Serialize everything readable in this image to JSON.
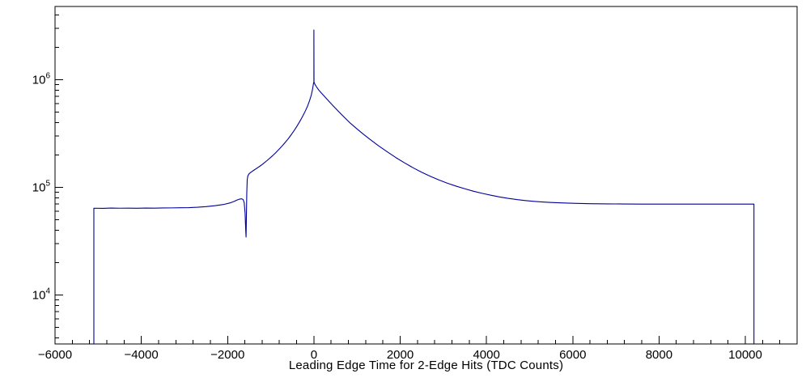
{
  "chart_data": {
    "type": "line",
    "title": "",
    "xlabel": "Leading Edge Time for 2-Edge Hits (TDC Counts)",
    "ylabel": "",
    "grid": false,
    "legend": "none",
    "y_scale": "log",
    "xlim": [
      -6000,
      11200
    ],
    "ylim": [
      3500,
      4800000
    ],
    "line_color": "#000099",
    "axis_color": "#000000",
    "x_minor_step": 400,
    "x_ticks": [
      {
        "value": -6000,
        "label": "−6000"
      },
      {
        "value": -4000,
        "label": "−4000"
      },
      {
        "value": -2000,
        "label": "−2000"
      },
      {
        "value": 0,
        "label": "0"
      },
      {
        "value": 2000,
        "label": "2000"
      },
      {
        "value": 4000,
        "label": "4000"
      },
      {
        "value": 6000,
        "label": "6000"
      },
      {
        "value": 8000,
        "label": "8000"
      },
      {
        "value": 10000,
        "label": "10000"
      }
    ],
    "y_decades": [
      {
        "value": 10000,
        "base": "10",
        "exp": "4"
      },
      {
        "value": 100000,
        "base": "10",
        "exp": "5"
      },
      {
        "value": 1000000,
        "base": "10",
        "exp": "6"
      }
    ],
    "series": [
      {
        "name": "leading-edge-time-2-edge-hits",
        "points": [
          [
            -5100,
            3500
          ],
          [
            -5100,
            64000
          ],
          [
            -4900,
            63800
          ],
          [
            -4700,
            64200
          ],
          [
            -4500,
            64000
          ],
          [
            -4300,
            64100
          ],
          [
            -4100,
            63900
          ],
          [
            -3900,
            64200
          ],
          [
            -3700,
            64100
          ],
          [
            -3500,
            64300
          ],
          [
            -3300,
            64400
          ],
          [
            -3100,
            64600
          ],
          [
            -2900,
            64800
          ],
          [
            -2700,
            65300
          ],
          [
            -2500,
            66200
          ],
          [
            -2300,
            67500
          ],
          [
            -2100,
            69200
          ],
          [
            -1950,
            71500
          ],
          [
            -1850,
            74000
          ],
          [
            -1780,
            76200
          ],
          [
            -1720,
            77800
          ],
          [
            -1670,
            78200
          ],
          [
            -1640,
            77000
          ],
          [
            -1615,
            72000
          ],
          [
            -1595,
            58000
          ],
          [
            -1580,
            40000
          ],
          [
            -1572,
            34500
          ],
          [
            -1565,
            52000
          ],
          [
            -1555,
            90000
          ],
          [
            -1545,
            118000
          ],
          [
            -1530,
            128000
          ],
          [
            -1500,
            134000
          ],
          [
            -1450,
            139000
          ],
          [
            -1400,
            143500
          ],
          [
            -1350,
            148000
          ],
          [
            -1300,
            152500
          ],
          [
            -1250,
            157500
          ],
          [
            -1200,
            163000
          ],
          [
            -1150,
            169000
          ],
          [
            -1100,
            175500
          ],
          [
            -1050,
            182500
          ],
          [
            -1000,
            190000
          ],
          [
            -950,
            198000
          ],
          [
            -900,
            207000
          ],
          [
            -850,
            217000
          ],
          [
            -800,
            227500
          ],
          [
            -750,
            239000
          ],
          [
            -700,
            252000
          ],
          [
            -650,
            266000
          ],
          [
            -600,
            281000
          ],
          [
            -550,
            299000
          ],
          [
            -500,
            319000
          ],
          [
            -450,
            341000
          ],
          [
            -400,
            366000
          ],
          [
            -350,
            395000
          ],
          [
            -300,
            428000
          ],
          [
            -250,
            466000
          ],
          [
            -200,
            511000
          ],
          [
            -150,
            565000
          ],
          [
            -100,
            640000
          ],
          [
            -60,
            720000
          ],
          [
            -30,
            820000
          ],
          [
            -10,
            920000
          ],
          [
            0,
            955000
          ],
          [
            0,
            2900000
          ],
          [
            3,
            950000
          ],
          [
            25,
            905000
          ],
          [
            60,
            860000
          ],
          [
            110,
            805000
          ],
          [
            170,
            755000
          ],
          [
            250,
            697000
          ],
          [
            350,
            630000
          ],
          [
            450,
            570000
          ],
          [
            570,
            508000
          ],
          [
            700,
            450000
          ],
          [
            850,
            393000
          ],
          [
            1000,
            349000
          ],
          [
            1150,
            311000
          ],
          [
            1300,
            279000
          ],
          [
            1500,
            243000
          ],
          [
            1700,
            214000
          ],
          [
            1900,
            189000
          ],
          [
            2100,
            169000
          ],
          [
            2300,
            152000
          ],
          [
            2500,
            138000
          ],
          [
            2700,
            126500
          ],
          [
            2900,
            117000
          ],
          [
            3100,
            109000
          ],
          [
            3300,
            102500
          ],
          [
            3500,
            97000
          ],
          [
            3700,
            92000
          ],
          [
            3900,
            88000
          ],
          [
            4100,
            84500
          ],
          [
            4300,
            81500
          ],
          [
            4500,
            79000
          ],
          [
            4700,
            77000
          ],
          [
            4900,
            75400
          ],
          [
            5100,
            74100
          ],
          [
            5300,
            73100
          ],
          [
            5500,
            72300
          ],
          [
            5800,
            71500
          ],
          [
            6100,
            70900
          ],
          [
            6400,
            70500
          ],
          [
            6800,
            70200
          ],
          [
            7200,
            70000
          ],
          [
            7600,
            69900
          ],
          [
            8000,
            69900
          ],
          [
            8500,
            69900
          ],
          [
            9000,
            69900
          ],
          [
            9500,
            69900
          ],
          [
            10000,
            69900
          ],
          [
            10200,
            69900
          ],
          [
            10200,
            3500
          ]
        ]
      }
    ]
  }
}
